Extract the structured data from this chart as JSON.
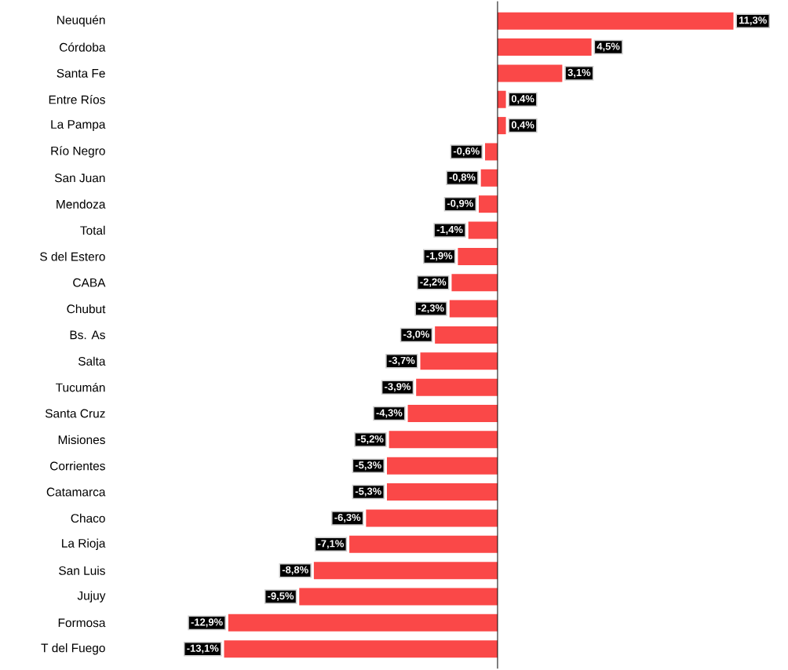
{
  "chart_data": {
    "type": "bar",
    "orientation": "horizontal",
    "color": "#fa4848",
    "categories": [
      "Neuquén",
      "Córdoba",
      "Santa Fe",
      "Entre Ríos",
      "La Pampa",
      "Río Negro",
      "San Juan",
      "Mendoza",
      "Total",
      "S del Estero",
      "CABA",
      "Chubut",
      "Bs. As",
      "Salta",
      "Tucumán",
      "Santa Cruz",
      "Misiones",
      "Corrientes",
      "Catamarca",
      "Chaco",
      "La Rioja",
      "San Luis",
      "Jujuy",
      "Formosa",
      "T del Fuego"
    ],
    "values": [
      11.3,
      4.5,
      3.1,
      0.4,
      0.4,
      -0.6,
      -0.8,
      -0.9,
      -1.4,
      -1.9,
      -2.2,
      -2.3,
      -3.0,
      -3.7,
      -3.9,
      -4.3,
      -5.2,
      -5.3,
      -5.3,
      -6.3,
      -7.1,
      -8.8,
      -9.5,
      -12.9,
      -13.1
    ],
    "value_labels": [
      "11,3%",
      "4,5%",
      "3,1%",
      "0,4%",
      "0,4%",
      "-0,6%",
      "-0,8%",
      "-0,9%",
      "-1,4%",
      "-1,9%",
      "-2,2%",
      "-2,3%",
      "-3,0%",
      "-3,7%",
      "-3,9%",
      "-4,3%",
      "-5,2%",
      "-5,3%",
      "-5,3%",
      "-6,3%",
      "-7,1%",
      "-8,8%",
      "-9,5%",
      "-12,9%",
      "-13,1%"
    ]
  }
}
